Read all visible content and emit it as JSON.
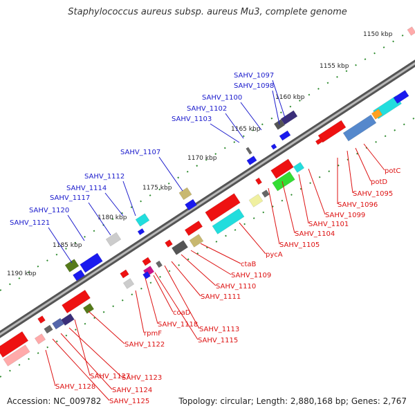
{
  "title": "Staphylococcus aureus subsp. aureus Mu3, complete genome",
  "footer": {
    "accession": "Accession: NC_009782",
    "summary": "Topology: circular; Length: 2,880,168 bp; Genes: 2,767"
  },
  "colors": {
    "backbone": "#888888",
    "tick": "#2e8b2e",
    "label_top": "#1a1acc",
    "label_bottom": "#dd1111"
  },
  "ticks": [
    "1150 kbp",
    "1155 kbp",
    "1160 kbp",
    "1165 kbp",
    "1170 kbp",
    "1175 kbp",
    "1180 kbp",
    "1185 kbp",
    "1190 kbp"
  ],
  "labels_top": [
    "SAHV_1097",
    "SAHV_1098",
    "SAHV_1100",
    "SAHV_1102",
    "SAHV_1103",
    "SAHV_1107",
    "SAHV_1112",
    "SAHV_1114",
    "SAHV_1117",
    "SAHV_1120",
    "SAHV_1121"
  ],
  "labels_bottom": [
    "potC",
    "potD",
    "SAHV_1095",
    "SAHV_1096",
    "SAHV_1099",
    "SAHV_1101",
    "SAHV_1104",
    "SAHV_1105",
    "pycA",
    "ctaB",
    "SAHV_1109",
    "SAHV_1110",
    "SAHV_1111",
    "SAHV_1113",
    "SAHV_1115",
    "coaD",
    "SAHV_1118",
    "rpmF",
    "SAHV_1122",
    "SAHV_1123",
    "SAHV_1124",
    "SAHV_1125",
    "SAHV_1127",
    "SAHV_1128"
  ]
}
